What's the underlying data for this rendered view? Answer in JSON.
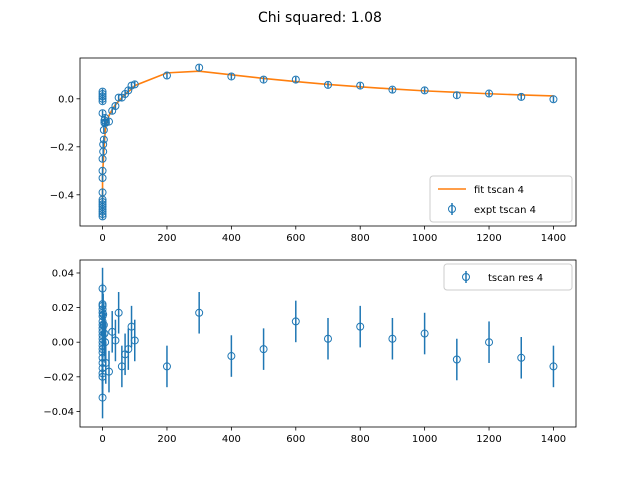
{
  "title": "Chi squared: 1.08",
  "colors": {
    "fit": "#ff7f0e",
    "data": "#1f77b4",
    "frame": "#000000",
    "legend_border": "#cccccc"
  },
  "chart_data": [
    {
      "type": "scatter",
      "panel": "top",
      "xlim": [
        -70,
        1470
      ],
      "ylim": [
        -0.53,
        0.17
      ],
      "xticks": [
        0,
        200,
        400,
        600,
        800,
        1000,
        1200,
        1400
      ],
      "xtick_labels": [
        "0",
        "200",
        "400",
        "600",
        "800",
        "1000",
        "1200",
        "1400"
      ],
      "yticks": [
        0.0,
        -0.2,
        -0.4
      ],
      "ytick_labels": [
        "0.0",
        "−0.2",
        "−0.4"
      ],
      "grid": false,
      "legend_placement": "lower right",
      "series": [
        {
          "name": "fit tscan 4",
          "kind": "line",
          "color": "#ff7f0e",
          "x": [
            0,
            0,
            0,
            0,
            0,
            0,
            0,
            0,
            0,
            0,
            2,
            4,
            6,
            8,
            10,
            20,
            30,
            40,
            50,
            60,
            70,
            80,
            90,
            100,
            200,
            300,
            400,
            500,
            600,
            700,
            800,
            900,
            1000,
            1100,
            1200,
            1300,
            1400
          ],
          "y": [
            -0.49,
            -0.47,
            -0.46,
            -0.45,
            -0.44,
            -0.43,
            -0.42,
            -0.4,
            -0.37,
            -0.32,
            -0.27,
            -0.22,
            -0.18,
            -0.14,
            -0.11,
            -0.07,
            -0.045,
            -0.025,
            -0.01,
            0.005,
            0.018,
            0.03,
            0.04,
            0.055,
            0.108,
            0.115,
            0.1,
            0.085,
            0.072,
            0.06,
            0.05,
            0.041,
            0.033,
            0.027,
            0.021,
            0.016,
            0.012
          ]
        },
        {
          "name": "expt tscan 4",
          "kind": "errorbar",
          "color": "#1f77b4",
          "x": [
            0,
            0,
            0,
            0,
            0,
            0,
            0,
            0,
            0,
            0,
            0,
            0,
            0,
            0,
            0,
            0,
            0,
            0,
            2,
            2,
            4,
            4,
            6,
            6,
            8,
            10,
            20,
            30,
            40,
            50,
            60,
            70,
            80,
            90,
            100,
            200,
            300,
            400,
            500,
            600,
            700,
            800,
            900,
            1000,
            1100,
            1200,
            1300,
            1400
          ],
          "y": [
            -0.49,
            -0.48,
            -0.47,
            -0.46,
            -0.45,
            -0.44,
            -0.43,
            -0.42,
            -0.39,
            -0.33,
            -0.3,
            -0.25,
            0.03,
            0.02,
            0.01,
            0.0,
            -0.01,
            -0.06,
            -0.22,
            -0.19,
            -0.17,
            -0.13,
            -0.1,
            -0.09,
            -0.08,
            -0.1,
            -0.095,
            -0.05,
            -0.03,
            0.005,
            0.005,
            0.02,
            0.035,
            0.055,
            0.06,
            0.097,
            0.13,
            0.093,
            0.08,
            0.08,
            0.058,
            0.055,
            0.038,
            0.035,
            0.015,
            0.022,
            0.008,
            -0.002
          ],
          "yerr": 0.012
        }
      ]
    },
    {
      "type": "scatter",
      "panel": "bottom",
      "xlim": [
        -70,
        1470
      ],
      "ylim": [
        -0.049,
        0.0475
      ],
      "xticks": [
        0,
        200,
        400,
        600,
        800,
        1000,
        1200,
        1400
      ],
      "xtick_labels": [
        "0",
        "200",
        "400",
        "600",
        "800",
        "1000",
        "1200",
        "1400"
      ],
      "yticks": [
        0.04,
        0.02,
        0.0,
        -0.02,
        -0.04
      ],
      "ytick_labels": [
        "0.04",
        "0.02",
        "0.00",
        "−0.02",
        "−0.04"
      ],
      "grid": false,
      "legend_placement": "upper right",
      "series": [
        {
          "name": "tscan res 4",
          "kind": "errorbar",
          "color": "#1f77b4",
          "x": [
            0,
            0,
            0,
            0,
            0,
            0,
            0,
            0,
            0,
            0,
            0,
            0,
            0,
            0,
            0,
            0,
            0,
            0,
            0,
            0,
            0,
            0,
            2,
            4,
            6,
            8,
            10,
            20,
            30,
            40,
            50,
            60,
            70,
            80,
            90,
            100,
            200,
            300,
            400,
            500,
            600,
            700,
            800,
            900,
            1000,
            1100,
            1200,
            1300,
            1400
          ],
          "y": [
            0.031,
            0.022,
            0.021,
            0.019,
            0.017,
            0.015,
            0.012,
            0.01,
            0.008,
            0.006,
            0.004,
            0.002,
            0.0,
            -0.002,
            -0.004,
            -0.006,
            -0.009,
            -0.012,
            -0.015,
            -0.018,
            -0.02,
            -0.032,
            0.016,
            0.01,
            0.005,
            0.0,
            -0.012,
            -0.017,
            0.006,
            0.001,
            0.017,
            -0.014,
            -0.007,
            -0.004,
            0.009,
            0.001,
            -0.014,
            0.017,
            -0.008,
            -0.004,
            0.012,
            0.002,
            0.009,
            0.002,
            0.005,
            -0.01,
            0.0,
            -0.009,
            -0.014
          ],
          "yerr": 0.012
        }
      ]
    }
  ]
}
